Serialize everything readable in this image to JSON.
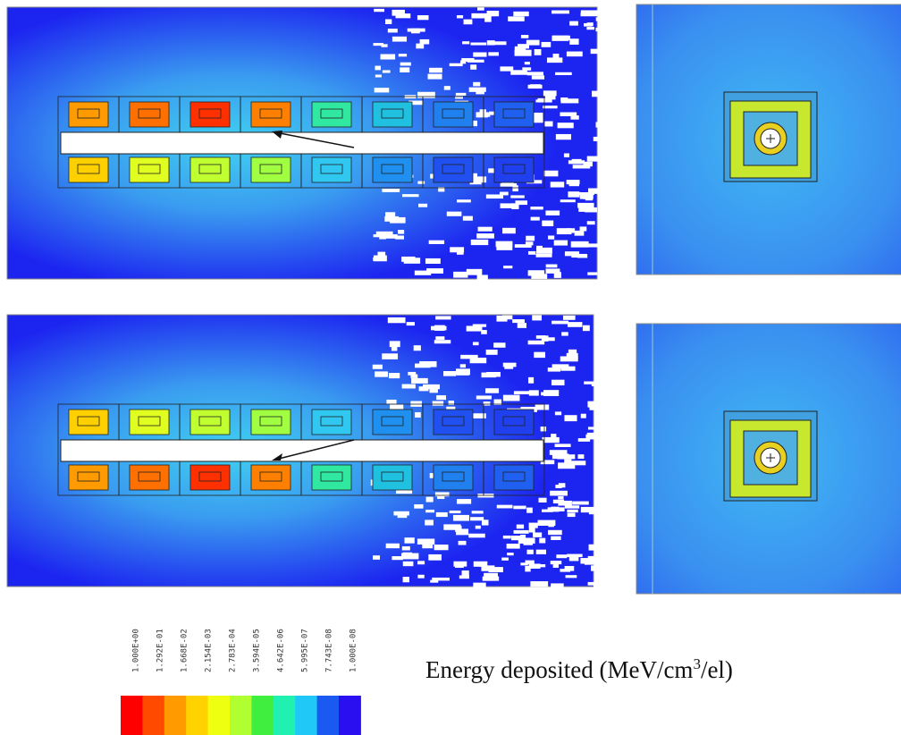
{
  "colorbar": {
    "labels": [
      "1.000E+00",
      "1.292E-01",
      "1.668E-02",
      "2.154E-03",
      "2.783E-04",
      "3.594E-05",
      "4.642E-06",
      "5.995E-07",
      "7.743E-08",
      "1.000E-08"
    ],
    "colors": [
      "#ff0000",
      "#ff4a00",
      "#ff9a00",
      "#ffd200",
      "#eeff10",
      "#b0ff30",
      "#40ee40",
      "#20f0b0",
      "#20c8f8",
      "#1a5af0",
      "#2a10f0"
    ]
  },
  "caption": {
    "main": "Energy deposited (MeV/cm",
    "superscript": "3",
    "tail": "/el)"
  }
}
